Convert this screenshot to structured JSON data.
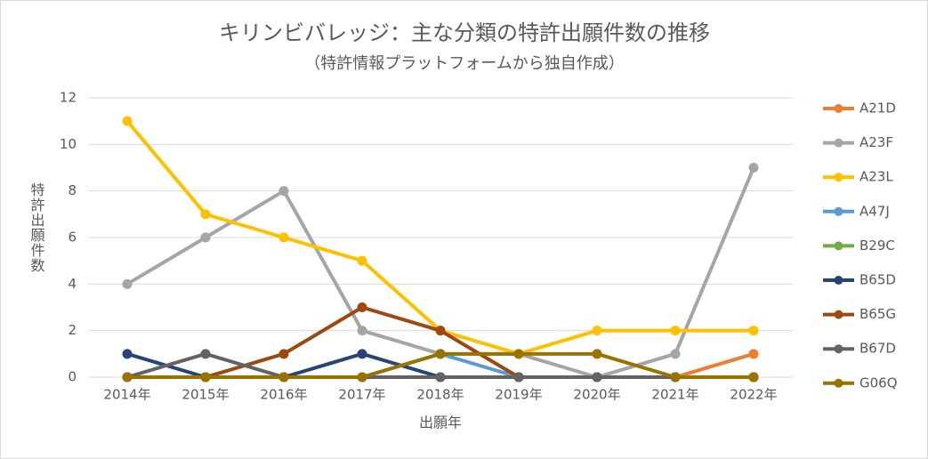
{
  "chart_data": {
    "type": "line",
    "title": "キリンビバレッジ：主な分類の特許出願件数の推移",
    "subtitle": "（特許情報プラットフォームから独自作成）",
    "x_label": "出願年",
    "y_label": "特許出願件数",
    "categories": [
      "2014年",
      "2015年",
      "2016年",
      "2017年",
      "2018年",
      "2019年",
      "2020年",
      "2021年",
      "2022年"
    ],
    "series": [
      {
        "name": "A21D",
        "color": "#ED7D31",
        "values": [
          0,
          0,
          0,
          0,
          0,
          0,
          0,
          0,
          1
        ]
      },
      {
        "name": "A23F",
        "color": "#A5A5A5",
        "values": [
          4,
          6,
          8,
          2,
          1,
          1,
          0,
          1,
          9
        ]
      },
      {
        "name": "A23L",
        "color": "#FFC000",
        "values": [
          11,
          7,
          6,
          5,
          2,
          1,
          2,
          2,
          2
        ]
      },
      {
        "name": "A47J",
        "color": "#5B9BD5",
        "values": [
          0,
          0,
          0,
          0,
          1,
          0,
          0,
          0,
          0
        ]
      },
      {
        "name": "B29C",
        "color": "#70AD47",
        "values": [
          0,
          0,
          0,
          0,
          0,
          0,
          0,
          0,
          0
        ]
      },
      {
        "name": "B65D",
        "color": "#264478",
        "values": [
          1,
          0,
          0,
          1,
          0,
          0,
          0,
          0,
          0
        ]
      },
      {
        "name": "B65G",
        "color": "#9E480E",
        "values": [
          0,
          0,
          1,
          3,
          2,
          0,
          0,
          0,
          0
        ]
      },
      {
        "name": "B67D",
        "color": "#636363",
        "values": [
          0,
          1,
          0,
          0,
          0,
          0,
          0,
          0,
          0
        ]
      },
      {
        "name": "G06Q",
        "color": "#997300",
        "values": [
          0,
          0,
          0,
          0,
          1,
          1,
          1,
          0,
          0
        ]
      }
    ],
    "ylim": [
      0,
      12
    ],
    "yticks": [
      0,
      2,
      4,
      6,
      8,
      10,
      12
    ],
    "grid": true,
    "legend": "right"
  }
}
